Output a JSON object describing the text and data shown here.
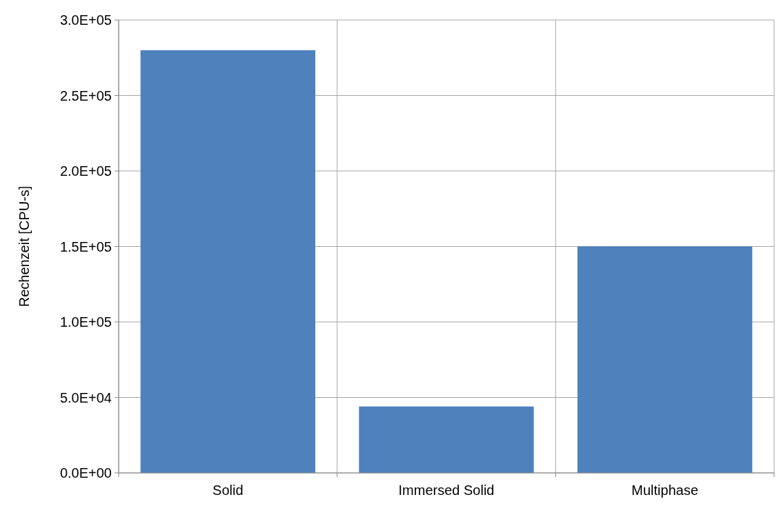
{
  "chart_data": {
    "type": "bar",
    "ylabel": "Rechenzeit [CPU-s]",
    "categories": [
      "Solid",
      "Immersed Solid",
      "Multiphase"
    ],
    "values": [
      280000,
      44000,
      150000
    ],
    "color": "#4f81bd",
    "ylim": [
      0,
      300000
    ],
    "yticks": [
      {
        "value": 0,
        "label": "0.0E+00"
      },
      {
        "value": 50000,
        "label": "5.0E+04"
      },
      {
        "value": 100000,
        "label": "1.0E+05"
      },
      {
        "value": 150000,
        "label": "1.5E+05"
      },
      {
        "value": 200000,
        "label": "2.0E+05"
      },
      {
        "value": 250000,
        "label": "2.5E+05"
      },
      {
        "value": 300000,
        "label": "3.0E+05"
      }
    ],
    "grid": true
  }
}
